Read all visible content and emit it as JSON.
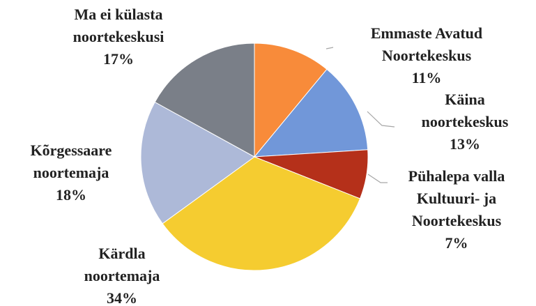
{
  "chart_data": {
    "type": "pie",
    "categories": [
      "Emmaste Avatud Noortekeskus",
      "Käina noortekeskus",
      "Pühalepa valla Kultuuri- ja Noortekeskus",
      "Kärdla noortemaja",
      "Kõrgessaare noortemaja",
      "Ma ei külasta noortekeskusi"
    ],
    "values": [
      11,
      13,
      7,
      34,
      18,
      17
    ],
    "value_labels": [
      "11%",
      "13%",
      "7%",
      "34%",
      "18%",
      "17%"
    ],
    "colors": [
      "#f88b3a",
      "#7197d9",
      "#b5301a",
      "#f5cc30",
      "#adb9d8",
      "#7a7f88"
    ]
  }
}
